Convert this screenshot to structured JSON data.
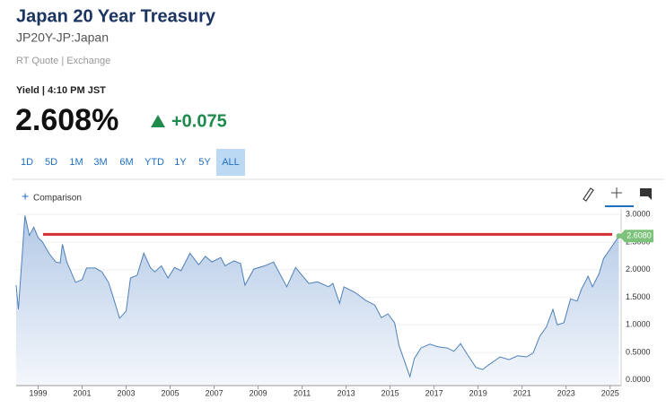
{
  "header": {
    "title": "Japan 20 Year Treasury",
    "symbol": "JP20Y-JP:Japan",
    "source": "RT Quote | Exchange"
  },
  "quote": {
    "label": "Yield | 4:10 PM JST",
    "price": "2.608%",
    "change": "+0.075"
  },
  "ranges": [
    "1D",
    "5D",
    "1M",
    "3M",
    "6M",
    "YTD",
    "1Y",
    "5Y",
    "ALL"
  ],
  "comparison": "Comparison",
  "chart_data": {
    "type": "area",
    "color": "#4f80b8",
    "x": [
      1998.0,
      1998.1,
      1998.4,
      1998.6,
      1998.8,
      1999.0,
      1999.2,
      1999.5,
      1999.8,
      2000.0,
      2000.1,
      2000.3,
      2000.7,
      2001.0,
      2001.2,
      2001.6,
      2001.9,
      2002.2,
      2002.4,
      2002.7,
      2003.0,
      2003.2,
      2003.5,
      2003.8,
      2004.1,
      2004.3,
      2004.6,
      2004.9,
      2005.2,
      2005.5,
      2005.9,
      2006.3,
      2006.6,
      2006.9,
      2007.3,
      2007.5,
      2007.9,
      2008.2,
      2008.4,
      2008.8,
      2009.3,
      2009.7,
      2010.3,
      2010.7,
      2011.3,
      2011.7,
      2012.2,
      2012.4,
      2012.7,
      2012.9,
      2013.4,
      2013.9,
      2014.3,
      2014.6,
      2014.9,
      2015.2,
      2015.4,
      2015.9,
      2016.1,
      2016.4,
      2016.8,
      2017.2,
      2017.6,
      2017.9,
      2018.2,
      2018.5,
      2018.9,
      2019.2,
      2019.6,
      2020.0,
      2020.4,
      2020.8,
      2021.2,
      2021.5,
      2021.8,
      2022.1,
      2022.4,
      2022.6,
      2022.9,
      2023.2,
      2023.5,
      2023.7,
      2024.0,
      2024.2,
      2024.5,
      2024.7,
      2025.0,
      2025.3,
      2025.4
    ],
    "values": [
      1.72,
      1.28,
      2.98,
      2.62,
      2.77,
      2.58,
      2.5,
      2.29,
      2.14,
      2.12,
      2.46,
      2.14,
      1.77,
      1.82,
      2.03,
      2.03,
      1.96,
      1.77,
      1.52,
      1.12,
      1.25,
      1.85,
      1.9,
      2.3,
      2.04,
      1.96,
      2.07,
      1.85,
      2.04,
      1.98,
      2.3,
      2.09,
      2.24,
      2.14,
      2.22,
      2.07,
      2.16,
      2.11,
      1.72,
      2.01,
      2.07,
      2.14,
      1.69,
      2.04,
      1.75,
      1.78,
      1.69,
      1.75,
      1.39,
      1.69,
      1.59,
      1.44,
      1.36,
      1.13,
      1.2,
      1.04,
      0.63,
      0.06,
      0.39,
      0.58,
      0.65,
      0.6,
      0.58,
      0.52,
      0.66,
      0.47,
      0.23,
      0.19,
      0.31,
      0.42,
      0.37,
      0.44,
      0.42,
      0.49,
      0.79,
      0.96,
      1.28,
      1.0,
      1.04,
      1.47,
      1.43,
      1.65,
      1.88,
      1.69,
      1.93,
      2.2,
      2.37,
      2.55,
      2.61
    ],
    "xlim": [
      1998.0,
      2025.5
    ],
    "ylim": [
      -0.1,
      3.1
    ],
    "xticks": [
      1999,
      2001,
      2003,
      2005,
      2007,
      2009,
      2011,
      2013,
      2015,
      2017,
      2019,
      2021,
      2023,
      2025
    ],
    "yticks": [
      {
        "value": 0,
        "label": "0.0000"
      },
      {
        "value": 0.5,
        "label": "0.5000"
      },
      {
        "value": 1,
        "label": "1.0000"
      },
      {
        "value": 1.5,
        "label": "1.5000"
      },
      {
        "value": 2,
        "label": "2.0000"
      },
      {
        "value": 2.5,
        "label": "2.5000"
      },
      {
        "value": 3,
        "label": "3.0000"
      }
    ],
    "reference_line": {
      "value": 2.64,
      "color": "#d32f2f"
    },
    "price_marker": {
      "value": 2.608,
      "label": "2.6080",
      "color": "#7cc27a"
    }
  }
}
